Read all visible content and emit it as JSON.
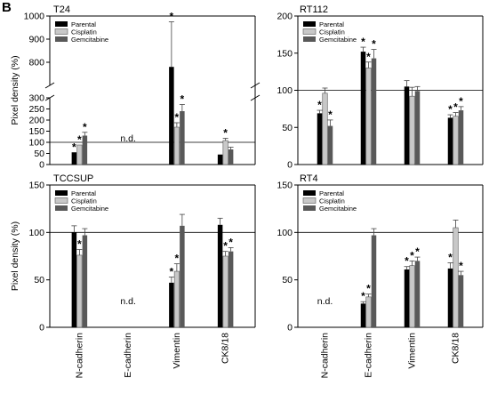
{
  "panel_letter": "B",
  "colors": {
    "parental": "#000000",
    "cisplatin": "#c8c8c8",
    "gemcitabine": "#595959",
    "axis": "#000000"
  },
  "chart_data": [
    {
      "type": "bar",
      "title": "T24",
      "ylabel": "Pixel density (%)",
      "categories": [
        "N-cadherin",
        "E-cadherin",
        "Vimentin",
        "CK8/18"
      ],
      "axis_break": {
        "lower": [
          0,
          300
        ],
        "upper": [
          700,
          1000
        ]
      },
      "yticks_lower": [
        0,
        50,
        100,
        150,
        200,
        250,
        300
      ],
      "yticks_upper": [
        800,
        900,
        1000
      ],
      "reference_line": 100,
      "legend_position": "top-left",
      "series": [
        {
          "name": "Parental",
          "values": [
            55,
            null,
            780,
            45
          ],
          "errors": [
            0,
            null,
            195,
            0
          ],
          "stars": [
            true,
            false,
            true,
            false
          ]
        },
        {
          "name": "Cisplatin",
          "values": [
            88,
            null,
            168,
            108
          ],
          "errors": [
            0,
            null,
            20,
            10
          ],
          "stars": [
            true,
            false,
            true,
            true
          ]
        },
        {
          "name": "Gemcitabine",
          "values": [
            130,
            null,
            240,
            68
          ],
          "errors": [
            15,
            null,
            30,
            10
          ],
          "stars": [
            true,
            false,
            true,
            false
          ]
        }
      ],
      "annotations": [
        {
          "category": "E-cadherin",
          "text": "n.d."
        }
      ]
    },
    {
      "type": "bar",
      "title": "RT112",
      "ylabel": "",
      "categories": [
        "N-cadherin",
        "E-cadherin",
        "Vimentin",
        "CK8/18"
      ],
      "ylim": [
        0,
        200
      ],
      "yticks": [
        0,
        50,
        100,
        150,
        200
      ],
      "reference_line": 100,
      "legend_position": "top-left",
      "series": [
        {
          "name": "Parental",
          "values": [
            69,
            152,
            105,
            63
          ],
          "errors": [
            4,
            6,
            8,
            4
          ],
          "stars": [
            true,
            true,
            false,
            true
          ]
        },
        {
          "name": "Cisplatin",
          "values": [
            96,
            130,
            92,
            65
          ],
          "errors": [
            7,
            8,
            12,
            5
          ],
          "stars": [
            false,
            true,
            false,
            true
          ]
        },
        {
          "name": "Gemcitabine",
          "values": [
            52,
            143,
            99,
            73
          ],
          "errors": [
            8,
            12,
            6,
            5
          ],
          "stars": [
            true,
            true,
            false,
            true
          ]
        }
      ]
    },
    {
      "type": "bar",
      "title": "TCCSUP",
      "ylabel": "Pixel density (%)",
      "categories": [
        "N-cadherin",
        "E-cadherin",
        "Vimentin",
        "CK8/18"
      ],
      "ylim": [
        0,
        150
      ],
      "yticks": [
        0,
        50,
        100,
        150
      ],
      "reference_line": 100,
      "legend_position": "top-left",
      "series": [
        {
          "name": "Parental",
          "values": [
            100,
            null,
            47,
            108
          ],
          "errors": [
            7,
            null,
            6,
            7
          ],
          "stars": [
            false,
            false,
            true,
            false
          ]
        },
        {
          "name": "Cisplatin",
          "values": [
            76,
            null,
            59,
            75
          ],
          "errors": [
            6,
            null,
            8,
            5
          ],
          "stars": [
            true,
            false,
            true,
            true
          ]
        },
        {
          "name": "Gemcitabine",
          "values": [
            97,
            null,
            107,
            80
          ],
          "errors": [
            7,
            null,
            12,
            4
          ],
          "stars": [
            false,
            false,
            false,
            true
          ]
        }
      ],
      "annotations": [
        {
          "category": "E-cadherin",
          "text": "n.d."
        }
      ]
    },
    {
      "type": "bar",
      "title": "RT4",
      "ylabel": "",
      "categories": [
        "N-cadherin",
        "E-cadherin",
        "Vimentin",
        "CK8/18"
      ],
      "ylim": [
        0,
        150
      ],
      "yticks": [
        0,
        50,
        100,
        150
      ],
      "reference_line": 100,
      "legend_position": "top-left",
      "series": [
        {
          "name": "Parental",
          "values": [
            null,
            25,
            61,
            62
          ],
          "errors": [
            null,
            2,
            3,
            6
          ],
          "stars": [
            false,
            true,
            true,
            true
          ]
        },
        {
          "name": "Cisplatin",
          "values": [
            null,
            32,
            65,
            105
          ],
          "errors": [
            null,
            3,
            5,
            8
          ],
          "stars": [
            false,
            true,
            true,
            false
          ]
        },
        {
          "name": "Gemcitabine",
          "values": [
            null,
            97,
            70,
            55
          ],
          "errors": [
            null,
            7,
            4,
            4
          ],
          "stars": [
            false,
            false,
            true,
            true
          ]
        }
      ],
      "annotations": [
        {
          "category": "N-cadherin",
          "text": "n.d."
        }
      ]
    }
  ]
}
